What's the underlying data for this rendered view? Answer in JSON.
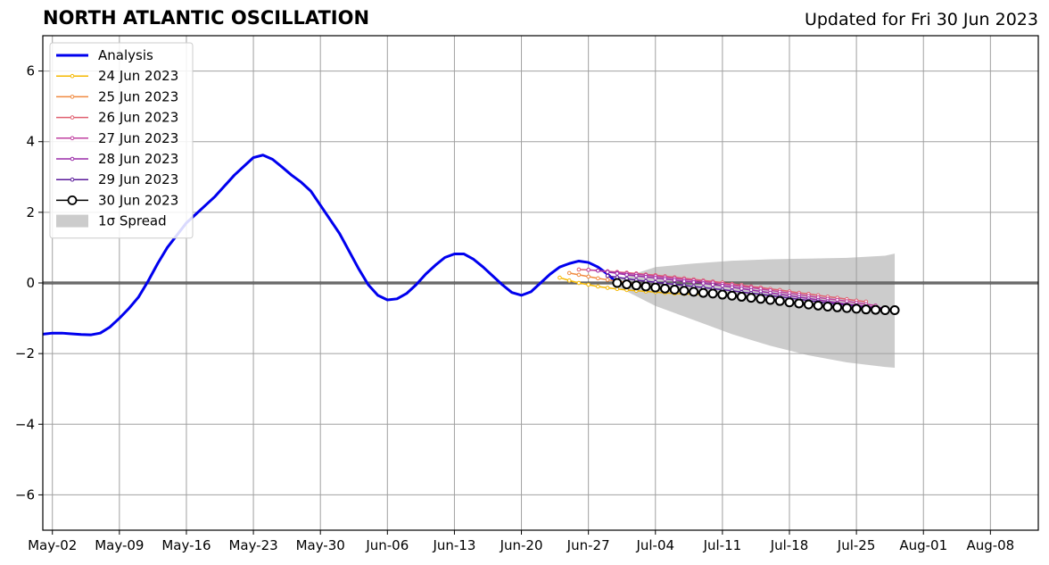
{
  "header": {
    "title": "NORTH ATLANTIC OSCILLATION",
    "updated": "Updated for Fri 30 Jun 2023"
  },
  "chart_data": {
    "type": "line",
    "title": "NORTH ATLANTIC OSCILLATION",
    "subtitle": "Updated for Fri 30 Jun 2023",
    "xlabel": "",
    "ylabel": "",
    "x_is_date": true,
    "xlim": [
      "2023-05-01",
      "2023-08-13"
    ],
    "ylim": [
      -7,
      7
    ],
    "grid": true,
    "zero_line": true,
    "legend_position": "top-left",
    "x_ticks": [
      {
        "date": "2023-05-02",
        "label": "May-02"
      },
      {
        "date": "2023-05-09",
        "label": "May-09"
      },
      {
        "date": "2023-05-16",
        "label": "May-16"
      },
      {
        "date": "2023-05-23",
        "label": "May-23"
      },
      {
        "date": "2023-05-30",
        "label": "May-30"
      },
      {
        "date": "2023-06-06",
        "label": "Jun-06"
      },
      {
        "date": "2023-06-13",
        "label": "Jun-13"
      },
      {
        "date": "2023-06-20",
        "label": "Jun-20"
      },
      {
        "date": "2023-06-27",
        "label": "Jun-27"
      },
      {
        "date": "2023-07-04",
        "label": "Jul-04"
      },
      {
        "date": "2023-07-11",
        "label": "Jul-11"
      },
      {
        "date": "2023-07-18",
        "label": "Jul-18"
      },
      {
        "date": "2023-07-25",
        "label": "Jul-25"
      },
      {
        "date": "2023-08-01",
        "label": "Aug-01"
      },
      {
        "date": "2023-08-08",
        "label": "Aug-08"
      }
    ],
    "y_ticks": [
      {
        "value": 6,
        "label": "6"
      },
      {
        "value": 4,
        "label": "4"
      },
      {
        "value": 2,
        "label": "2"
      },
      {
        "value": 0,
        "label": "0"
      },
      {
        "value": -2,
        "label": "−2"
      },
      {
        "value": -4,
        "label": "−4"
      },
      {
        "value": -6,
        "label": "−6"
      }
    ],
    "spread": {
      "name": "1σ Spread",
      "color": "#cccccc",
      "x": [
        "2023-06-30",
        "2023-07-04",
        "2023-07-08",
        "2023-07-12",
        "2023-07-16",
        "2023-07-20",
        "2023-07-24",
        "2023-07-28",
        "2023-07-29"
      ],
      "upper": [
        0.1,
        0.45,
        0.55,
        0.63,
        0.67,
        0.69,
        0.71,
        0.77,
        0.83
      ],
      "lower": [
        -0.1,
        -0.65,
        -1.05,
        -1.45,
        -1.78,
        -2.05,
        -2.25,
        -2.38,
        -2.4
      ]
    },
    "series": [
      {
        "name": "Analysis",
        "color": "#0000ee",
        "style": "analysis",
        "x": [
          "2023-05-01",
          "2023-05-02",
          "2023-05-03",
          "2023-05-04",
          "2023-05-05",
          "2023-05-06",
          "2023-05-07",
          "2023-05-08",
          "2023-05-09",
          "2023-05-10",
          "2023-05-11",
          "2023-05-12",
          "2023-05-13",
          "2023-05-14",
          "2023-05-15",
          "2023-05-16",
          "2023-05-17",
          "2023-05-18",
          "2023-05-19",
          "2023-05-20",
          "2023-05-21",
          "2023-05-22",
          "2023-05-23",
          "2023-05-24",
          "2023-05-25",
          "2023-05-26",
          "2023-05-27",
          "2023-05-28",
          "2023-05-29",
          "2023-05-30",
          "2023-05-31",
          "2023-06-01",
          "2023-06-02",
          "2023-06-03",
          "2023-06-04",
          "2023-06-05",
          "2023-06-06",
          "2023-06-07",
          "2023-06-08",
          "2023-06-09",
          "2023-06-10",
          "2023-06-11",
          "2023-06-12",
          "2023-06-13",
          "2023-06-14",
          "2023-06-15",
          "2023-06-16",
          "2023-06-17",
          "2023-06-18",
          "2023-06-19",
          "2023-06-20",
          "2023-06-21",
          "2023-06-22",
          "2023-06-23",
          "2023-06-24",
          "2023-06-25",
          "2023-06-26",
          "2023-06-27",
          "2023-06-28",
          "2023-06-29",
          "2023-06-30"
        ],
        "values": [
          -1.45,
          -1.42,
          -1.42,
          -1.44,
          -1.46,
          -1.47,
          -1.42,
          -1.25,
          -1.0,
          -0.72,
          -0.4,
          0.05,
          0.55,
          1.0,
          1.35,
          1.7,
          1.95,
          2.2,
          2.45,
          2.75,
          3.05,
          3.3,
          3.55,
          3.62,
          3.5,
          3.28,
          3.05,
          2.85,
          2.6,
          2.2,
          1.8,
          1.4,
          0.9,
          0.4,
          -0.05,
          -0.35,
          -0.48,
          -0.45,
          -0.3,
          -0.05,
          0.25,
          0.5,
          0.72,
          0.82,
          0.82,
          0.67,
          0.45,
          0.2,
          -0.05,
          -0.27,
          -0.35,
          -0.25,
          0.0,
          0.25,
          0.45,
          0.55,
          0.62,
          0.58,
          0.45,
          0.25,
          0.0
        ]
      },
      {
        "name": "24 Jun 2023",
        "color": "#f5b800",
        "style": "small",
        "x": [
          "2023-06-24",
          "2023-06-25",
          "2023-06-26",
          "2023-06-27",
          "2023-06-28",
          "2023-06-29",
          "2023-06-30",
          "2023-07-01",
          "2023-07-02",
          "2023-07-03",
          "2023-07-04",
          "2023-07-05",
          "2023-07-06",
          "2023-07-07",
          "2023-07-08",
          "2023-07-09"
        ],
        "values": [
          0.15,
          0.07,
          0.0,
          -0.05,
          -0.1,
          -0.14,
          -0.17,
          -0.2,
          -0.22,
          -0.24,
          -0.26,
          -0.28,
          -0.3,
          -0.31,
          -0.32,
          -0.33
        ]
      },
      {
        "name": "25 Jun 2023",
        "color": "#f08a40",
        "style": "small",
        "x": [
          "2023-06-25",
          "2023-06-26",
          "2023-06-27",
          "2023-06-28",
          "2023-06-29",
          "2023-06-30",
          "2023-07-01",
          "2023-07-02",
          "2023-07-03",
          "2023-07-04",
          "2023-07-05",
          "2023-07-06",
          "2023-07-07",
          "2023-07-08",
          "2023-07-09",
          "2023-07-10"
        ],
        "values": [
          0.28,
          0.23,
          0.18,
          0.13,
          0.09,
          0.05,
          0.01,
          -0.03,
          -0.07,
          -0.1,
          -0.14,
          -0.17,
          -0.2,
          -0.23,
          -0.26,
          -0.29
        ]
      },
      {
        "name": "26 Jun 2023",
        "color": "#e06070",
        "style": "small",
        "x": [
          "2023-06-26",
          "2023-06-27",
          "2023-06-28",
          "2023-06-29",
          "2023-06-30",
          "2023-07-01",
          "2023-07-02",
          "2023-07-03",
          "2023-07-04",
          "2023-07-05",
          "2023-07-06",
          "2023-07-07",
          "2023-07-08",
          "2023-07-09",
          "2023-07-10",
          "2023-07-11",
          "2023-07-12",
          "2023-07-13",
          "2023-07-14",
          "2023-07-15",
          "2023-07-16",
          "2023-07-17",
          "2023-07-18",
          "2023-07-19",
          "2023-07-20",
          "2023-07-21",
          "2023-07-22",
          "2023-07-23",
          "2023-07-24",
          "2023-07-25",
          "2023-07-26"
        ],
        "values": [
          0.38,
          0.37,
          0.35,
          0.33,
          0.31,
          0.29,
          0.27,
          0.24,
          0.22,
          0.19,
          0.16,
          0.13,
          0.1,
          0.07,
          0.04,
          0.01,
          -0.03,
          -0.06,
          -0.1,
          -0.13,
          -0.17,
          -0.2,
          -0.24,
          -0.28,
          -0.31,
          -0.35,
          -0.39,
          -0.42,
          -0.46,
          -0.5,
          -0.53
        ]
      },
      {
        "name": "27 Jun 2023",
        "color": "#c040a0",
        "style": "small",
        "x": [
          "2023-06-27",
          "2023-06-28",
          "2023-06-29",
          "2023-06-30",
          "2023-07-01",
          "2023-07-02",
          "2023-07-03",
          "2023-07-04",
          "2023-07-05",
          "2023-07-06",
          "2023-07-07",
          "2023-07-08",
          "2023-07-09",
          "2023-07-10",
          "2023-07-11",
          "2023-07-12",
          "2023-07-13",
          "2023-07-14",
          "2023-07-15",
          "2023-07-16",
          "2023-07-17",
          "2023-07-18",
          "2023-07-19",
          "2023-07-20",
          "2023-07-21",
          "2023-07-22",
          "2023-07-23",
          "2023-07-24",
          "2023-07-25",
          "2023-07-26",
          "2023-07-27"
        ],
        "values": [
          0.37,
          0.35,
          0.32,
          0.3,
          0.27,
          0.25,
          0.22,
          0.19,
          0.16,
          0.13,
          0.1,
          0.07,
          0.04,
          0.01,
          -0.03,
          -0.06,
          -0.1,
          -0.13,
          -0.17,
          -0.21,
          -0.25,
          -0.29,
          -0.33,
          -0.37,
          -0.41,
          -0.45,
          -0.48,
          -0.52,
          -0.56,
          -0.6,
          -0.64
        ]
      },
      {
        "name": "28 Jun 2023",
        "color": "#9a2aa8",
        "style": "small",
        "x": [
          "2023-06-28",
          "2023-06-29",
          "2023-06-30",
          "2023-07-01",
          "2023-07-02",
          "2023-07-03",
          "2023-07-04",
          "2023-07-05",
          "2023-07-06",
          "2023-07-07",
          "2023-07-08",
          "2023-07-09",
          "2023-07-10",
          "2023-07-11",
          "2023-07-12",
          "2023-07-13",
          "2023-07-14",
          "2023-07-15",
          "2023-07-16",
          "2023-07-17",
          "2023-07-18",
          "2023-07-19",
          "2023-07-20",
          "2023-07-21",
          "2023-07-22",
          "2023-07-23",
          "2023-07-24",
          "2023-07-25",
          "2023-07-26",
          "2023-07-27",
          "2023-07-28"
        ],
        "values": [
          0.35,
          0.31,
          0.27,
          0.23,
          0.2,
          0.17,
          0.14,
          0.11,
          0.08,
          0.05,
          0.02,
          -0.01,
          -0.05,
          -0.08,
          -0.12,
          -0.16,
          -0.2,
          -0.24,
          -0.28,
          -0.32,
          -0.36,
          -0.4,
          -0.44,
          -0.48,
          -0.52,
          -0.56,
          -0.6,
          -0.63,
          -0.66,
          -0.69,
          -0.71
        ]
      },
      {
        "name": "29 Jun 2023",
        "color": "#5a1a9a",
        "style": "small",
        "x": [
          "2023-06-29",
          "2023-06-30",
          "2023-07-01",
          "2023-07-02",
          "2023-07-03",
          "2023-07-04",
          "2023-07-05",
          "2023-07-06",
          "2023-07-07",
          "2023-07-08",
          "2023-07-09",
          "2023-07-10",
          "2023-07-11",
          "2023-07-12",
          "2023-07-13",
          "2023-07-14",
          "2023-07-15",
          "2023-07-16",
          "2023-07-17",
          "2023-07-18",
          "2023-07-19",
          "2023-07-20",
          "2023-07-21",
          "2023-07-22",
          "2023-07-23",
          "2023-07-24",
          "2023-07-25",
          "2023-07-26",
          "2023-07-27",
          "2023-07-28",
          "2023-07-29"
        ],
        "values": [
          0.2,
          0.16,
          0.12,
          0.08,
          0.05,
          0.02,
          -0.01,
          -0.04,
          -0.07,
          -0.1,
          -0.13,
          -0.16,
          -0.19,
          -0.22,
          -0.26,
          -0.29,
          -0.32,
          -0.36,
          -0.39,
          -0.43,
          -0.46,
          -0.5,
          -0.53,
          -0.57,
          -0.6,
          -0.63,
          -0.66,
          -0.69,
          -0.72,
          -0.74,
          -0.76
        ]
      },
      {
        "name": "30 Jun 2023",
        "color": "#000000",
        "style": "large",
        "x": [
          "2023-06-30",
          "2023-07-01",
          "2023-07-02",
          "2023-07-03",
          "2023-07-04",
          "2023-07-05",
          "2023-07-06",
          "2023-07-07",
          "2023-07-08",
          "2023-07-09",
          "2023-07-10",
          "2023-07-11",
          "2023-07-12",
          "2023-07-13",
          "2023-07-14",
          "2023-07-15",
          "2023-07-16",
          "2023-07-17",
          "2023-07-18",
          "2023-07-19",
          "2023-07-20",
          "2023-07-21",
          "2023-07-22",
          "2023-07-23",
          "2023-07-24",
          "2023-07-25",
          "2023-07-26",
          "2023-07-27",
          "2023-07-28",
          "2023-07-29"
        ],
        "values": [
          0.0,
          -0.04,
          -0.07,
          -0.1,
          -0.13,
          -0.16,
          -0.19,
          -0.22,
          -0.25,
          -0.28,
          -0.3,
          -0.33,
          -0.36,
          -0.39,
          -0.42,
          -0.45,
          -0.48,
          -0.51,
          -0.55,
          -0.58,
          -0.61,
          -0.64,
          -0.67,
          -0.69,
          -0.71,
          -0.73,
          -0.75,
          -0.76,
          -0.77,
          -0.77
        ]
      }
    ]
  }
}
